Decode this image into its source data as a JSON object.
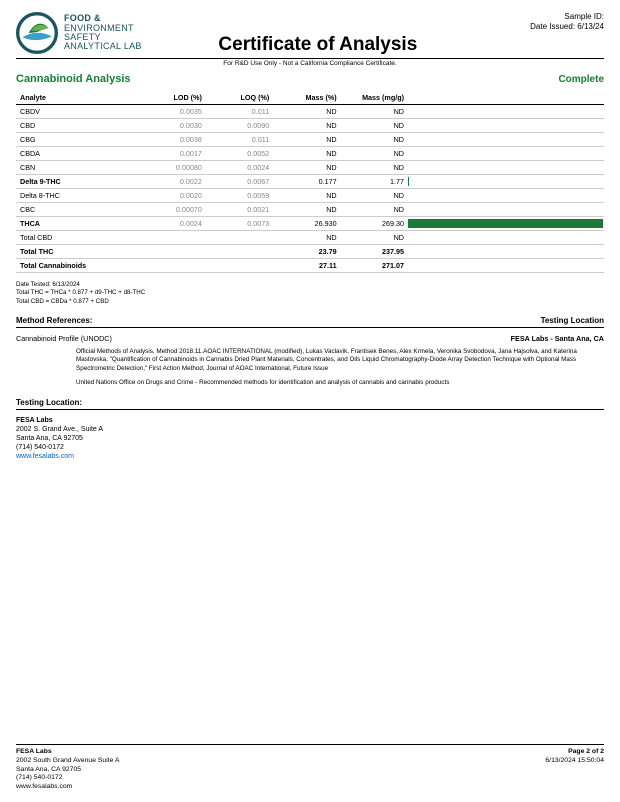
{
  "header": {
    "logo_lines": [
      "FOOD &",
      "ENVIRONMENT",
      "SAFETY",
      "ANALYTICAL LAB"
    ],
    "sample_id_label": "Sample ID:",
    "sample_id_value": "",
    "date_issued_label": "Date Issued:",
    "date_issued_value": "6/13/24",
    "title": "Certificate of Analysis",
    "subnote": "For R&D Use Only - Not a California Compliance Certificate."
  },
  "section": {
    "title": "Cannabinoid Analysis",
    "status": "Complete"
  },
  "table": {
    "columns": [
      "Analyte",
      "LOD (%)",
      "LOQ (%)",
      "Mass (%)",
      "Mass (mg/g)"
    ],
    "bar_color": "#1b7a3a",
    "bar_max_pct": 27.11,
    "rows": [
      {
        "analyte": "CBDV",
        "lod": "0.0035",
        "loq": "0.011",
        "mass_pct": "ND",
        "mass_mgg": "ND",
        "bold": false,
        "bar": 0
      },
      {
        "analyte": "CBD",
        "lod": "0.0030",
        "loq": "0.0090",
        "mass_pct": "ND",
        "mass_mgg": "ND",
        "bold": false,
        "bar": 0
      },
      {
        "analyte": "CBG",
        "lod": "0.0038",
        "loq": "0.011",
        "mass_pct": "ND",
        "mass_mgg": "ND",
        "bold": false,
        "bar": 0
      },
      {
        "analyte": "CBDA",
        "lod": "0.0017",
        "loq": "0.0052",
        "mass_pct": "ND",
        "mass_mgg": "ND",
        "bold": false,
        "bar": 0
      },
      {
        "analyte": "CBN",
        "lod": "0.00080",
        "loq": "0.0024",
        "mass_pct": "ND",
        "mass_mgg": "ND",
        "bold": false,
        "bar": 0
      },
      {
        "analyte": "Delta 9-THC",
        "lod": "0.0022",
        "loq": "0.0067",
        "mass_pct": "0.177",
        "mass_mgg": "1.77",
        "bold": true,
        "bar": 0.177
      },
      {
        "analyte": "Delta 8-THC",
        "lod": "0.0020",
        "loq": "0.0059",
        "mass_pct": "ND",
        "mass_mgg": "ND",
        "bold": false,
        "bar": 0
      },
      {
        "analyte": "CBC",
        "lod": "0.00070",
        "loq": "0.0021",
        "mass_pct": "ND",
        "mass_mgg": "ND",
        "bold": false,
        "bar": 0
      },
      {
        "analyte": "THCA",
        "lod": "0.0024",
        "loq": "0.0073",
        "mass_pct": "26.930",
        "mass_mgg": "269.30",
        "bold": true,
        "bar": 26.93
      },
      {
        "analyte": "Total CBD",
        "lod": "",
        "loq": "",
        "mass_pct": "ND",
        "mass_mgg": "ND",
        "bold": false,
        "bar": 0
      },
      {
        "analyte": "Total THC",
        "lod": "",
        "loq": "",
        "mass_pct": "23.79",
        "mass_mgg": "237.95",
        "bold": true,
        "boldrow": true,
        "bar": 0
      },
      {
        "analyte": "Total Cannabinoids",
        "lod": "",
        "loq": "",
        "mass_pct": "27.11",
        "mass_mgg": "271.07",
        "bold": true,
        "boldrow": true,
        "bar": 0
      }
    ]
  },
  "notes": [
    "Date Tested: 6/13/2024",
    "Total THC = THCa * 0.877 + d9-THC + d8-THC",
    "Total CBD = CBDa * 0.877 + CBD"
  ],
  "method_ref": {
    "heading_left": "Method References:",
    "heading_right": "Testing Location",
    "label": "Cannabinoid Profile (UNODC)",
    "lab": "FESA Labs - Santa Ana, CA",
    "body1": "Official Methods of Analysis, Method 2018.11.AOAC INTERNATIONAL (modified), Lukas Vaclavik, Frantisek Benes, Alex Krmela, Veronika Svobodova, Jana Hajsolva, and Katerina Mastovska, \"Quantification of Cannabinoids in Cannabis Dried Plant Materials, Concentrates, and Oils Liquid Chromatography-Diode Array Detection Technique with Optional Mass Spectrometric Detection,\" First Action Method, Journal of AOAC International, Future Issue",
    "body2": "United Nations Office on Drugs and Crime - Recommended methods for identification and analysis of cannabis and cannabis products"
  },
  "testing_loc": {
    "heading": "Testing Location:",
    "lab": "FESA Labs",
    "addr1": "2002 S. Grand Ave., Suite A",
    "addr2": "Santa Ana, CA 92705",
    "phone": "(714) 540-0172",
    "url": "www.fesalabs.com"
  },
  "footer": {
    "lab": "FESA Labs",
    "addr1": "2002 South Grand Avenue Suite A",
    "addr2": "Santa Ana, CA 92705",
    "phone": "(714) 540-0172",
    "url": "www.fesalabs.com",
    "page": "Page 2 of 2",
    "timestamp": "6/13/2024 15:50:04"
  },
  "logo_colors": {
    "ring": "#1b5560",
    "leaf_dark": "#1b7a3a",
    "leaf_light": "#6ab04c",
    "wave": "#3aa0c9"
  }
}
